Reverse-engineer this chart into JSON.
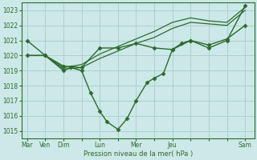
{
  "bg_color": "#cce8e8",
  "grid_color": "#aacccc",
  "line_color": "#2d6a2d",
  "marker_color": "#2d6a2d",
  "xlabel": "Pression niveau de la mer( hPa )",
  "ylim": [
    1014.5,
    1023.5
  ],
  "yticks": [
    1015,
    1016,
    1017,
    1018,
    1019,
    1020,
    1021,
    1022,
    1023
  ],
  "xlim": [
    -0.3,
    12.5
  ],
  "xtick_labels": [
    "Mar",
    "Ven",
    "Dim",
    "",
    "Lun",
    "",
    "Mer",
    "",
    "Jeu",
    "",
    "",
    "",
    "Sam"
  ],
  "xtick_positions": [
    0,
    1,
    2,
    3,
    4,
    5,
    6,
    7,
    8,
    9,
    10,
    11,
    12
  ],
  "series": [
    {
      "x": [
        0,
        1,
        2,
        3,
        4,
        5,
        6,
        7,
        8,
        9,
        10,
        11,
        12
      ],
      "y": [
        1020.0,
        1020.0,
        1019.1,
        1019.2,
        1019.8,
        1020.3,
        1020.8,
        1021.2,
        1021.8,
        1022.2,
        1022.1,
        1022.0,
        1023.0
      ],
      "has_markers": false,
      "lw": 0.9
    },
    {
      "x": [
        0,
        1,
        2,
        3,
        4,
        5,
        6,
        7,
        8,
        9,
        10,
        11,
        12
      ],
      "y": [
        1020.0,
        1020.0,
        1019.2,
        1019.4,
        1020.1,
        1020.6,
        1021.1,
        1021.6,
        1022.2,
        1022.5,
        1022.3,
        1022.2,
        1023.2
      ],
      "has_markers": false,
      "lw": 0.9
    },
    {
      "x": [
        0,
        1,
        2,
        2.4,
        3,
        3.5,
        4,
        4.4,
        5,
        5.5,
        6,
        6.6,
        7,
        7.5,
        8,
        8.5,
        9,
        10,
        11,
        12
      ],
      "y": [
        1021,
        1020,
        1019,
        1019.2,
        1019,
        1017.5,
        1016.3,
        1015.6,
        1015.1,
        1015.8,
        1017.0,
        1018.2,
        1018.5,
        1018.8,
        1020.4,
        1020.8,
        1021.0,
        1020.5,
        1021.0,
        1023.3
      ],
      "has_markers": true,
      "lw": 1.0
    },
    {
      "x": [
        0,
        1,
        2,
        3,
        4,
        5,
        6,
        7,
        8,
        9,
        10,
        11,
        12
      ],
      "y": [
        1020.0,
        1020.0,
        1019.3,
        1019.2,
        1020.5,
        1020.5,
        1020.8,
        1020.5,
        1020.4,
        1021.0,
        1020.7,
        1021.1,
        1022.0
      ],
      "has_markers": true,
      "lw": 1.0
    }
  ]
}
